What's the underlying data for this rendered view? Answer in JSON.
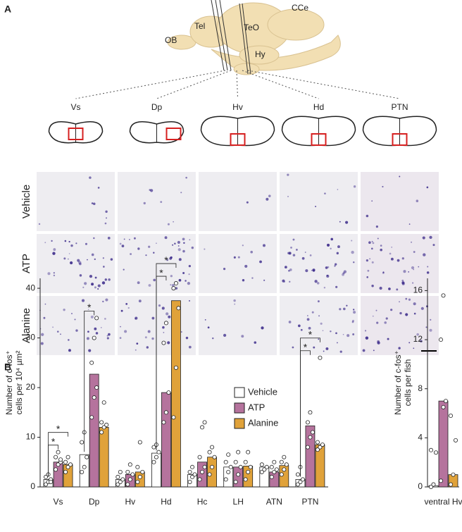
{
  "panel_labels": [
    "A",
    "B"
  ],
  "brain_labels": [
    "OB",
    "Tel",
    "TeO",
    "CCe",
    "Hy"
  ],
  "section_labels": [
    "Vs",
    "Dp",
    "Hv",
    "Hd",
    "PTN"
  ],
  "row_labels": [
    "Vehicle",
    "ATP",
    "Alanine"
  ],
  "chart_data": [
    {
      "type": "bar",
      "ylabel": [
        "Number of c-fos⁺",
        "cells per 10⁴ µm²"
      ],
      "categories": [
        "Vs",
        "Dp",
        "Hv",
        "Hd",
        "Hc",
        "LH",
        "ATN",
        "PTN"
      ],
      "series": [
        {
          "name": "Vehicle",
          "color": "#ffffff",
          "values": [
            1.5,
            6.5,
            1.5,
            6.8,
            2.5,
            4,
            4,
            1.5
          ],
          "points": [
            [
              0.5,
              1,
              1.5,
              2,
              2.5,
              1
            ],
            [
              3,
              4,
              6,
              9,
              11
            ],
            [
              0.5,
              1,
              1.5,
              2,
              3
            ],
            [
              5,
              6,
              7,
              8,
              8.5
            ],
            [
              1,
              2,
              2.5,
              3,
              4
            ],
            [
              1.5,
              3,
              4,
              5,
              6.5
            ],
            [
              3,
              3.5,
              4,
              4.5
            ],
            [
              0.5,
              1,
              1.5,
              2.5,
              4
            ]
          ]
        },
        {
          "name": "ATP",
          "color": "#b5739d",
          "values": [
            5,
            22.7,
            2.5,
            19,
            5,
            4,
            3,
            12.3
          ],
          "points": [
            [
              3.5,
              4.5,
              5,
              6,
              7,
              5.5
            ],
            [
              14,
              18,
              20,
              25,
              30,
              34
            ],
            [
              0.5,
              1.5,
              2.5,
              3,
              4.5
            ],
            [
              13,
              15,
              19,
              29,
              33
            ],
            [
              1.5,
              3,
              4,
              6,
              12,
              13
            ],
            [
              1,
              2.5,
              4,
              5,
              7,
              19.5
            ],
            [
              2,
              3,
              3.5,
              4,
              5
            ],
            [
              8,
              10,
              11,
              13,
              15
            ]
          ]
        },
        {
          "name": "Alanine",
          "color": "#e0a23a",
          "values": [
            4.5,
            12,
            3,
            37.5,
            6,
            4.2,
            4.3,
            8.5
          ],
          "points": [
            [
              3,
              4,
              4.5,
              5,
              6
            ],
            [
              11,
              12,
              12.5,
              13,
              17
            ],
            [
              1,
              2,
              3,
              4,
              9
            ],
            [
              14,
              24,
              36,
              40,
              41
            ],
            [
              2.5,
              4,
              6,
              7,
              8
            ],
            [
              1.5,
              3,
              4,
              5,
              7
            ],
            [
              2.5,
              3.5,
              4.5,
              5,
              6
            ],
            [
              7.5,
              8,
              8.5,
              9,
              26
            ]
          ]
        }
      ],
      "ylim": [
        0,
        42
      ],
      "yticks": [
        0,
        10,
        20,
        30,
        40
      ],
      "annotations": [
        {
          "text": "*",
          "category": 0,
          "from": 0,
          "to": 1
        },
        {
          "text": "*",
          "category": 0,
          "from": 0,
          "to": 2
        },
        {
          "text": "*",
          "category": 1,
          "from": 0,
          "to": 1
        },
        {
          "text": "*",
          "category": 3,
          "from": 0,
          "to": 1
        },
        {
          "text": "*",
          "category": 3,
          "from": 0,
          "to": 2
        },
        {
          "text": "*",
          "category": 7,
          "from": 0,
          "to": 1
        },
        {
          "text": "*",
          "category": 7,
          "from": 0,
          "to": 2
        }
      ]
    },
    {
      "type": "bar",
      "ylabel": [
        "Number of c-fos⁺",
        "cells per fish"
      ],
      "categories": [
        "ventral Hv"
      ],
      "series": [
        {
          "name": "Vehicle",
          "color": "#ffffff",
          "values": [
            0.1
          ],
          "points": [
            [
              0,
              0.2,
              2.8,
              3
            ]
          ]
        },
        {
          "name": "ATP",
          "color": "#b5739d",
          "values": [
            7
          ],
          "points": [
            [
              0.5,
              6.5,
              7,
              12,
              15.6
            ]
          ]
        },
        {
          "name": "Alanine",
          "color": "#e0a23a",
          "values": [
            1
          ],
          "points": [
            [
              0.2,
              1,
              3.8,
              5.8
            ]
          ]
        }
      ],
      "ylim": [
        0,
        17
      ],
      "yticks": [
        0,
        4,
        8,
        12,
        16
      ]
    }
  ]
}
